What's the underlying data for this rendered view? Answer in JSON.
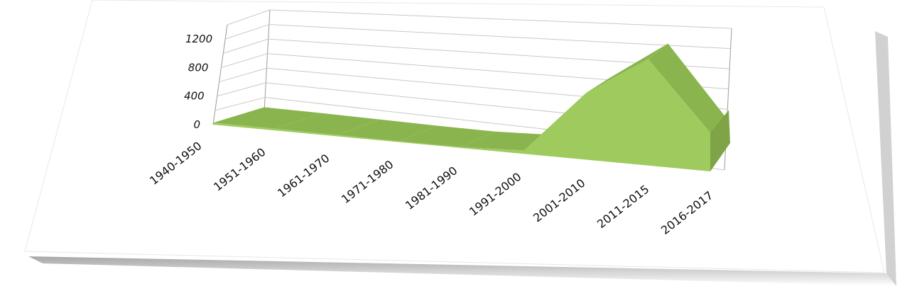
{
  "chart_data": {
    "type": "area",
    "title": "",
    "xlabel": "",
    "ylabel": "",
    "ylim": [
      0,
      1200
    ],
    "yticks": [
      0,
      400,
      800,
      1200
    ],
    "categories": [
      "1940-1950",
      "1951-1960",
      "1961-1970",
      "1971-1980",
      "1981-1990",
      "1991-2000",
      "2001-2010",
      "2011-2015",
      "2016-2017"
    ],
    "series": [
      {
        "values": [
          20,
          20,
          15,
          10,
          10,
          40,
          800,
          1300,
          480
        ]
      }
    ],
    "grid": true,
    "legend": "none",
    "perspective": "3d-tilted"
  },
  "colors": {
    "front": "#9fcb5e",
    "top": "#8ab54e",
    "side": "#7ea447",
    "floor_shadow": "#6f9040",
    "grid": "#c8c8c8",
    "axis": "#9a9a9a"
  }
}
